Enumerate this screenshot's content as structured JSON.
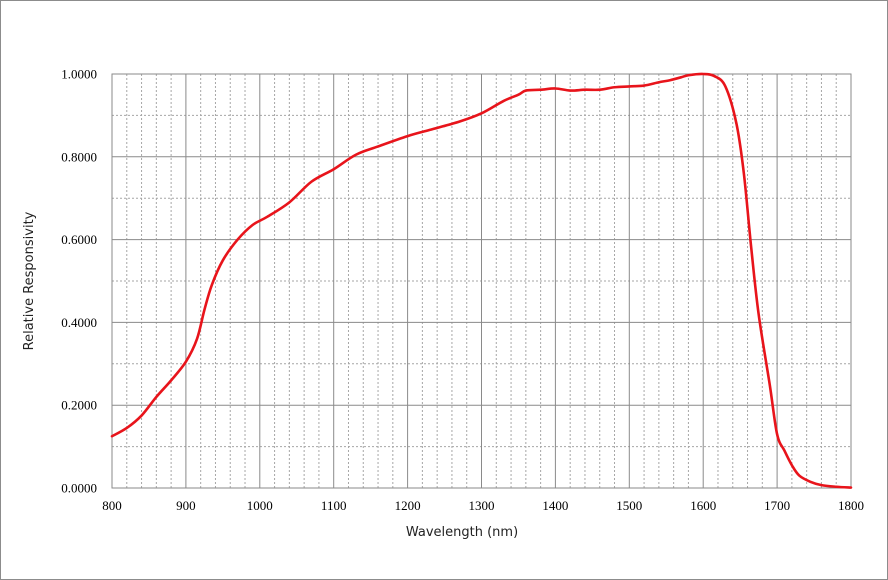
{
  "chart_data": {
    "type": "line",
    "title": "",
    "xlabel": "Wavelength (nm)",
    "ylabel": "Relative Responsivity",
    "xlim": [
      800,
      1800
    ],
    "ylim": [
      0,
      1
    ],
    "x_ticks": [
      "800",
      "900",
      "1000",
      "1100",
      "1200",
      "1300",
      "1400",
      "1500",
      "1600",
      "1700",
      "1800"
    ],
    "y_ticks": [
      "0.0000",
      "0.2000",
      "0.4000",
      "0.6000",
      "0.8000",
      "1.0000"
    ],
    "grid": {
      "major": "solid",
      "minor_x": "dotted",
      "minor_y": "dotted"
    },
    "legend": "none",
    "series": [
      {
        "color": "#e8141b",
        "x": [
          800,
          820,
          840,
          860,
          880,
          900,
          915,
          925,
          935,
          950,
          970,
          990,
          1010,
          1040,
          1070,
          1100,
          1130,
          1160,
          1200,
          1230,
          1270,
          1300,
          1330,
          1350,
          1360,
          1380,
          1400,
          1420,
          1440,
          1460,
          1480,
          1500,
          1520,
          1540,
          1555,
          1570,
          1580,
          1600,
          1615,
          1630,
          1645,
          1655,
          1665,
          1675,
          1690,
          1700,
          1710,
          1720,
          1730,
          1745,
          1760,
          1780,
          1800
        ],
        "y": [
          0.125,
          0.145,
          0.175,
          0.22,
          0.26,
          0.305,
          0.36,
          0.43,
          0.49,
          0.55,
          0.6,
          0.635,
          0.655,
          0.69,
          0.74,
          0.77,
          0.805,
          0.825,
          0.85,
          0.865,
          0.885,
          0.905,
          0.935,
          0.95,
          0.96,
          0.962,
          0.965,
          0.96,
          0.962,
          0.962,
          0.968,
          0.97,
          0.972,
          0.98,
          0.985,
          0.992,
          0.997,
          1.0,
          0.995,
          0.97,
          0.88,
          0.76,
          0.58,
          0.42,
          0.25,
          0.13,
          0.09,
          0.055,
          0.03,
          0.015,
          0.007,
          0.003,
          0.001
        ]
      }
    ]
  }
}
